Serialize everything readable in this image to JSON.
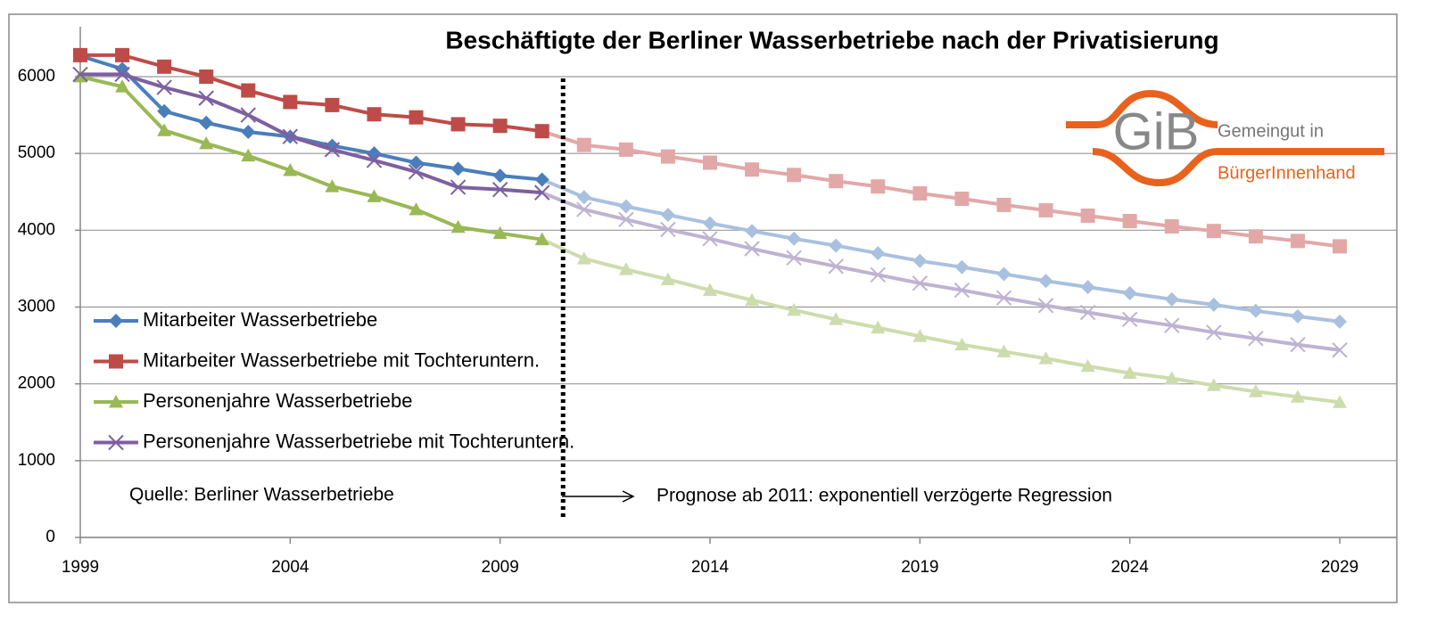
{
  "chart_data": {
    "type": "line",
    "title": "Beschäftigte der Berliner Wasserbetriebe nach der Privatisierung",
    "x": [
      1999,
      2000,
      2001,
      2002,
      2003,
      2004,
      2005,
      2006,
      2007,
      2008,
      2009,
      2010,
      2011,
      2012,
      2013,
      2014,
      2015,
      2016,
      2017,
      2018,
      2019,
      2020,
      2021,
      2022,
      2023,
      2024,
      2025,
      2026,
      2027,
      2028,
      2029
    ],
    "series": [
      {
        "name": "Mitarbeiter Wasserbetriebe",
        "color": "#4a7ebb",
        "forecast_color": "#a9c1df",
        "marker": "diamond",
        "values": [
          6270,
          6100,
          5550,
          5400,
          5280,
          5220,
          5100,
          5000,
          4880,
          4800,
          4710,
          4660,
          4430,
          4310,
          4200,
          4090,
          3990,
          3890,
          3800,
          3700,
          3600,
          3520,
          3430,
          3340,
          3260,
          3180,
          3100,
          3030,
          2950,
          2880,
          2810
        ]
      },
      {
        "name": "Mitarbeiter Wasserbetriebe mit Tochteruntern.",
        "color": "#be4b48",
        "forecast_color": "#e2a8a7",
        "marker": "square",
        "values": [
          6280,
          6280,
          6130,
          6000,
          5820,
          5670,
          5630,
          5510,
          5470,
          5380,
          5360,
          5290,
          5110,
          5050,
          4960,
          4880,
          4790,
          4720,
          4640,
          4570,
          4480,
          4410,
          4330,
          4260,
          4190,
          4120,
          4050,
          3990,
          3920,
          3860,
          3790
        ]
      },
      {
        "name": "Personenjahre Wasserbetriebe",
        "color": "#98b954",
        "forecast_color": "#cddcad",
        "marker": "triangle",
        "values": [
          6000,
          5870,
          5300,
          5130,
          4970,
          4780,
          4570,
          4440,
          4270,
          4040,
          3960,
          3880,
          3630,
          3490,
          3360,
          3220,
          3090,
          2960,
          2840,
          2730,
          2620,
          2510,
          2420,
          2330,
          2230,
          2140,
          2070,
          1980,
          1900,
          1830,
          1760
        ]
      },
      {
        "name": "Personenjahre Wasserbetriebe mit Tochteruntern.",
        "color": "#7d60a0",
        "forecast_color": "#bfb2d2",
        "marker": "x",
        "values": [
          6030,
          6030,
          5860,
          5720,
          5500,
          5220,
          5050,
          4910,
          4760,
          4560,
          4530,
          4490,
          4270,
          4140,
          4010,
          3890,
          3760,
          3640,
          3530,
          3420,
          3310,
          3220,
          3120,
          3020,
          2930,
          2840,
          2760,
          2670,
          2590,
          2510,
          2440
        ]
      }
    ],
    "forecast_start": 2011,
    "xlim": [
      1999,
      2029
    ],
    "xticks": [
      1999,
      2004,
      2009,
      2014,
      2019,
      2024,
      2029
    ],
    "ylim": [
      0,
      6000
    ],
    "yticks": [
      0,
      1000,
      2000,
      3000,
      4000,
      5000,
      6000
    ],
    "grid": true,
    "legend": "left",
    "annotations": [
      "Quelle: Berliner Wasserbetriebe",
      "Prognose ab 2011:  exponentiell verzögerte Regression"
    ],
    "logo": {
      "name": "GiB",
      "line1": "Gemeingut in",
      "line2": "BürgerInnenhand"
    }
  }
}
